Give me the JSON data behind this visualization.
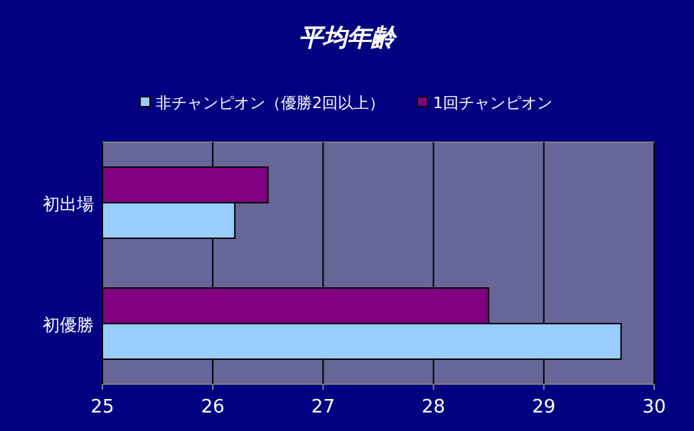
{
  "chart_data": {
    "type": "bar",
    "orientation": "horizontal",
    "title": "平均年齢",
    "categories": [
      "初出場",
      "初優勝"
    ],
    "series": [
      {
        "name": "非チャンピオン（優勝2回以上）",
        "color": "#99ccff",
        "values": [
          26.2,
          29.7
        ]
      },
      {
        "name": "1回チャンピオン",
        "color": "#800080",
        "values": [
          26.5,
          28.5
        ]
      }
    ],
    "xlim": [
      25,
      30
    ],
    "xticks": [
      25,
      26,
      27,
      28,
      29,
      30
    ],
    "grid": "x",
    "legend": "top"
  }
}
